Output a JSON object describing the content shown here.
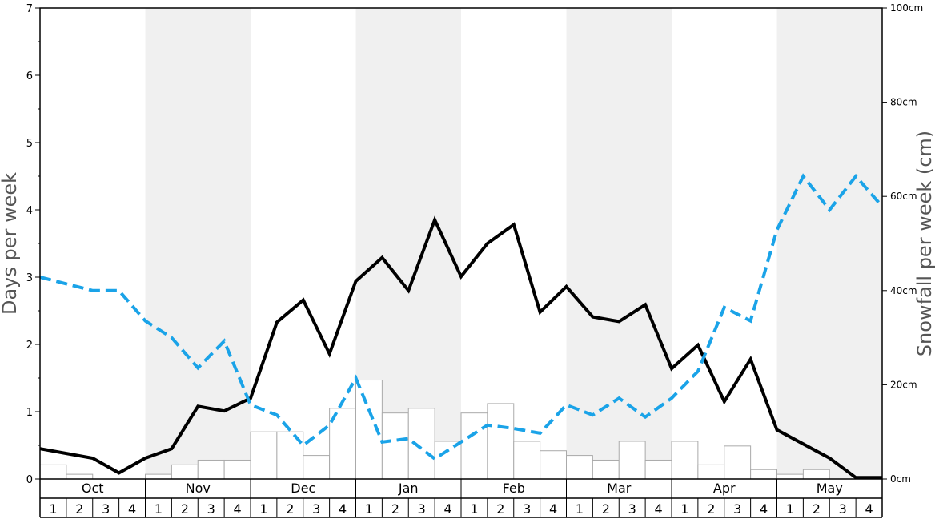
{
  "chart_data": {
    "type": "bar",
    "y_left_label": "Days per week",
    "y_right_label": "Snowfall per week (cm)",
    "y_left_ticks": [
      "0",
      "1",
      "2",
      "3",
      "4",
      "5",
      "6",
      "7"
    ],
    "y_left_range": [
      0,
      7
    ],
    "y_right_ticks": [
      "0cm",
      "20cm",
      "40cm",
      "60cm",
      "80cm",
      "100cm"
    ],
    "y_right_range": [
      0,
      100
    ],
    "months": [
      "Oct",
      "Nov",
      "Dec",
      "Jan",
      "Feb",
      "Mar",
      "Apr",
      "May"
    ],
    "weeks": [
      "1",
      "2",
      "3",
      "4"
    ],
    "shaded_months": [
      "Nov",
      "Jan",
      "Mar",
      "May"
    ],
    "grid": false,
    "series": [
      {
        "kind": "bar",
        "axis": "right",
        "color": "#ffffff",
        "edge_color": "#aaaaaa",
        "values": [
          3,
          1,
          0,
          0,
          1,
          3,
          4,
          4,
          10,
          10,
          5,
          15,
          21,
          14,
          15,
          8,
          14,
          16,
          8,
          6,
          5,
          4,
          8,
          4,
          8,
          3,
          7,
          2,
          1,
          2,
          0,
          0
        ]
      },
      {
        "kind": "line",
        "axis": "left",
        "style": "solid",
        "color": "#000000",
        "values": [
          0.45,
          0.38,
          0.31,
          0.09,
          0.31,
          0.45,
          1.08,
          1.01,
          1.2,
          2.33,
          2.66,
          1.86,
          2.94,
          3.29,
          2.8,
          3.85,
          3.01,
          3.5,
          3.78,
          2.48,
          2.86,
          2.41,
          2.34,
          2.59,
          1.64,
          1.99,
          1.15,
          1.78,
          0.73,
          0.52,
          0.31,
          0.02,
          0.02
        ]
      },
      {
        "kind": "line",
        "axis": "left",
        "style": "dashed",
        "color": "#1aa3e8",
        "values": [
          3.0,
          2.9,
          2.8,
          2.8,
          2.35,
          2.1,
          1.65,
          2.05,
          1.1,
          0.95,
          0.5,
          0.8,
          1.5,
          0.55,
          0.6,
          0.3,
          0.55,
          0.8,
          0.75,
          0.68,
          1.1,
          0.95,
          1.2,
          0.92,
          1.2,
          1.6,
          2.55,
          2.35,
          3.7,
          4.5,
          4.0,
          4.5,
          4.05
        ]
      }
    ]
  }
}
